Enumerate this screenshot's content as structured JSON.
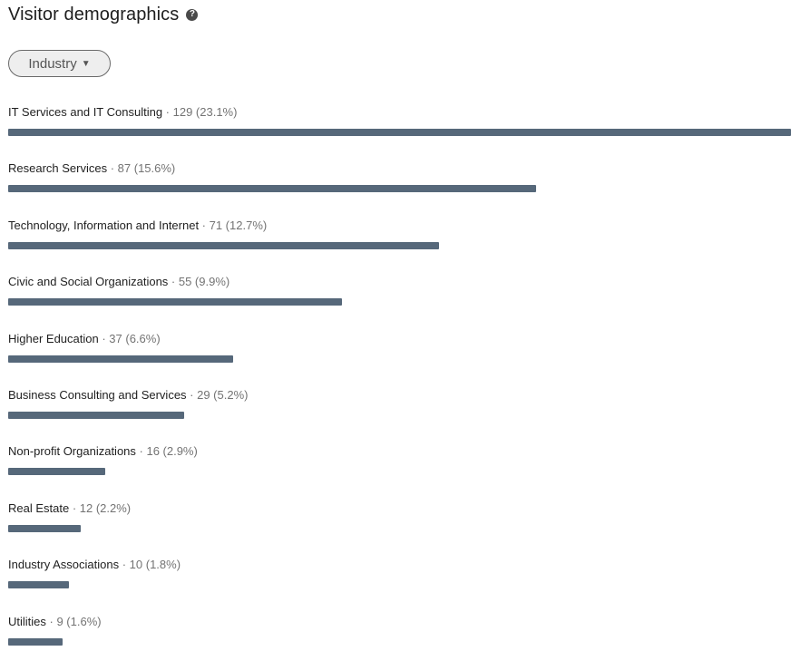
{
  "header": {
    "title": "Visitor demographics",
    "help_icon": "question-circle-icon"
  },
  "filter": {
    "label": "Industry",
    "caret_icon": "caret-down-icon"
  },
  "colors": {
    "bar": "#56687a",
    "label": "#1f1f1f",
    "meta": "#737373"
  },
  "chart_data": {
    "type": "bar",
    "max_value": 129,
    "rows": [
      {
        "name": "IT Services and IT Consulting",
        "meta": " · 129 (23.1%)",
        "value": 129
      },
      {
        "name": "Research Services",
        "meta": " · 87 (15.6%)",
        "value": 87
      },
      {
        "name": "Technology, Information and Internet",
        "meta": " · 71 (12.7%)",
        "value": 71
      },
      {
        "name": "Civic and Social Organizations",
        "meta": " · 55 (9.9%)",
        "value": 55
      },
      {
        "name": "Higher Education",
        "meta": " · 37 (6.6%)",
        "value": 37
      },
      {
        "name": "Business Consulting and Services",
        "meta": " · 29 (5.2%)",
        "value": 29
      },
      {
        "name": "Non-profit Organizations",
        "meta": " · 16 (2.9%)",
        "value": 16
      },
      {
        "name": "Real Estate",
        "meta": " · 12 (2.2%)",
        "value": 12
      },
      {
        "name": "Industry Associations",
        "meta": " · 10 (1.8%)",
        "value": 10
      },
      {
        "name": "Utilities",
        "meta": " · 9 (1.6%)",
        "value": 9
      }
    ]
  }
}
